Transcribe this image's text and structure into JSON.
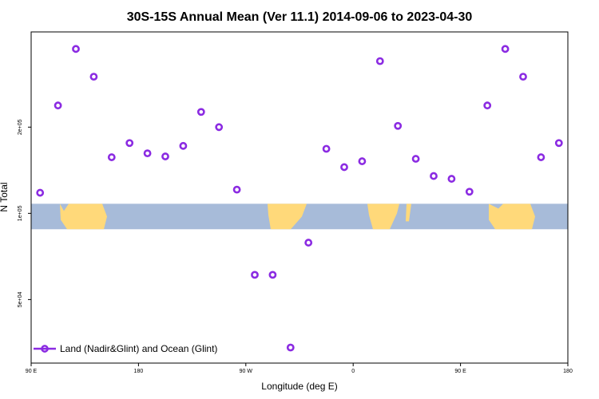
{
  "chart_data": {
    "type": "scatter",
    "title": "30S-15S Annual Mean (Ver 11.1)   2014-09-06 to 2023-04-30",
    "xlabel": "Longitude (deg E)",
    "ylabel": "N Total",
    "x_ticks": [
      {
        "value": 90,
        "label": "90 E"
      },
      {
        "value": 180,
        "label": "180"
      },
      {
        "value": 270,
        "label": "90 W"
      },
      {
        "value": 360,
        "label": "0"
      },
      {
        "value": 450,
        "label": "90 E"
      },
      {
        "value": 540,
        "label": "180"
      }
    ],
    "y_ticks": [
      {
        "value": 50000,
        "label": "5e+04"
      },
      {
        "value": 100000,
        "label": "1e+05"
      },
      {
        "value": 200000,
        "label": "2e+05"
      }
    ],
    "xlim": [
      90,
      540
    ],
    "ylim": [
      30000,
      430000
    ],
    "y_scale": "log",
    "legend_position": "bottom-left",
    "map_strip": {
      "y_range": [
        88000,
        108000
      ],
      "ocean_color": "#a7bbd9",
      "land_color": "#ffd97a"
    },
    "series": [
      {
        "name": "Land (Nadir&Glint) and Ocean (Glint)",
        "color": "#8b2be2",
        "x": [
          97.5,
          112.5,
          127.5,
          142.5,
          157.5,
          172.5,
          187.5,
          202.5,
          217.5,
          232.5,
          247.5,
          262.5,
          277.5,
          292.5,
          307.5,
          322.5,
          337.5,
          352.5,
          367.5,
          382.5,
          397.5,
          412.5,
          427.5,
          442.5,
          457.5,
          472.5,
          487.5,
          502.5,
          517.5,
          532.5
        ],
        "y": [
          118000,
          238000,
          375000,
          300000,
          157000,
          176000,
          162000,
          158000,
          172000,
          226000,
          200000,
          121000,
          61000,
          61000,
          34000,
          79000,
          168000,
          145000,
          152000,
          340000,
          202000,
          155000,
          135000,
          132000,
          119000,
          238000,
          375000,
          300000,
          157000,
          176000
        ]
      }
    ]
  }
}
